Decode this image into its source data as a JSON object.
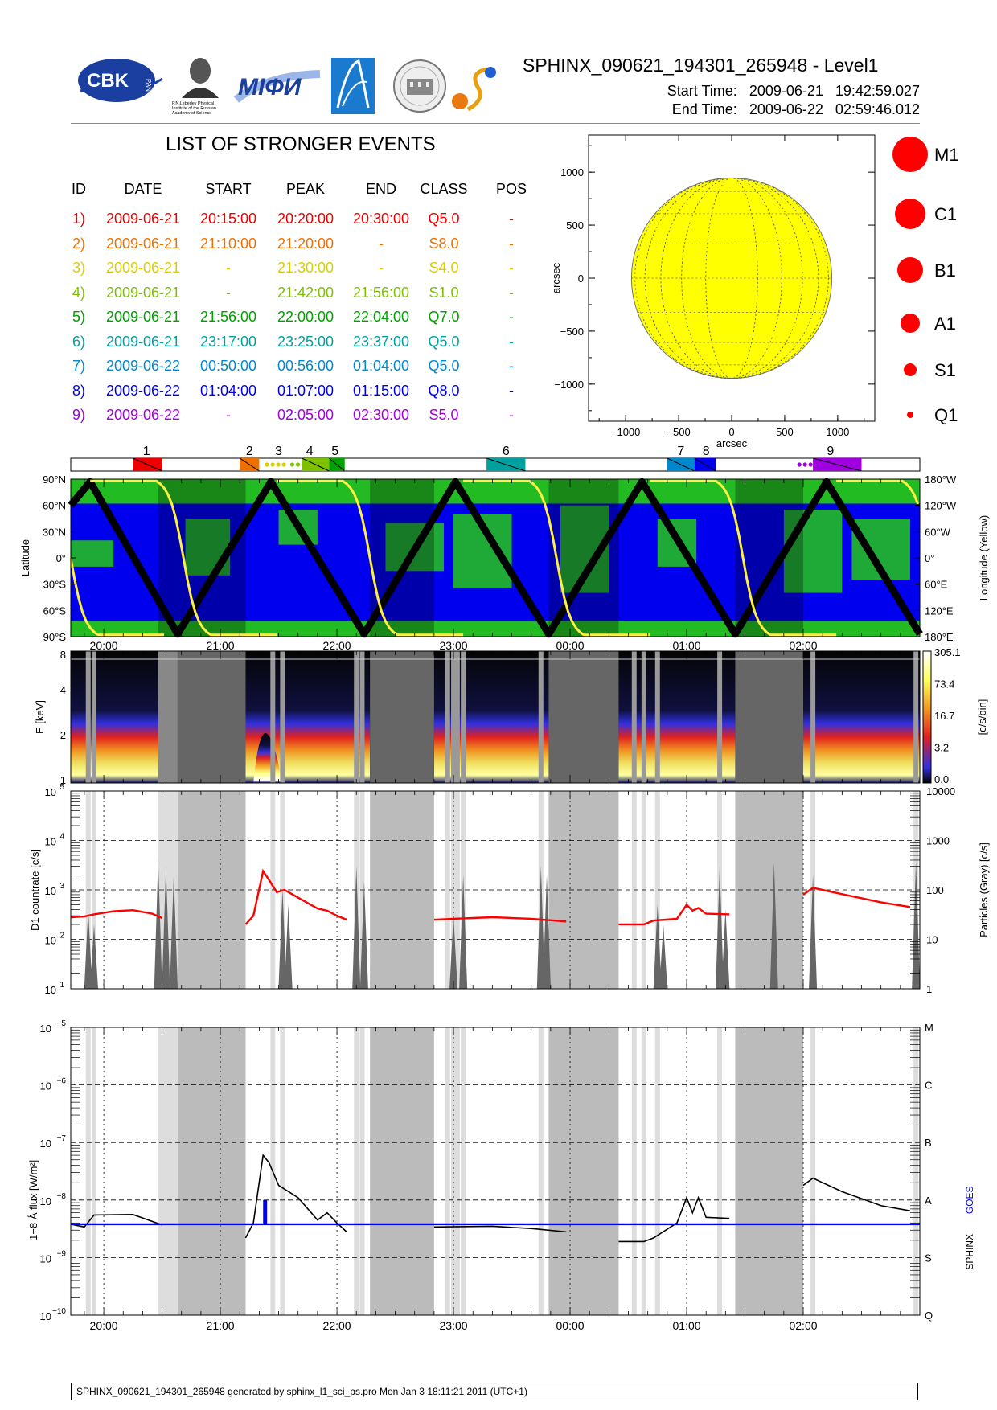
{
  "header": {
    "title": "SPHINX_090621_194301_265948 - Level1",
    "start_label": "Start Time:",
    "start_value": "2009-06-21   19:42:59.027",
    "end_label": "End Time:",
    "end_value": "2009-06-22   02:59:46.012",
    "logos": {
      "cbk": "CBK",
      "cbk_sub": "PAN",
      "lebedev": "P.N.Lebedev Physical Institute of the Russian Academy of Science",
      "mifi": "MIФИ"
    }
  },
  "events": {
    "title": "LIST OF STRONGER EVENTS",
    "columns": [
      "ID",
      "DATE",
      "START",
      "PEAK",
      "END",
      "CLASS",
      "POS"
    ],
    "rows": [
      {
        "id": "1)",
        "date": "2009-06-21",
        "start": "20:15:00",
        "peak": "20:20:00",
        "end": "20:30:00",
        "class": "Q5.0",
        "pos": "-",
        "color": "#ee0000"
      },
      {
        "id": "2)",
        "date": "2009-06-21",
        "start": "21:10:00",
        "peak": "21:20:00",
        "end": "-",
        "class": "S8.0",
        "pos": "-",
        "color": "#ef7000"
      },
      {
        "id": "3)",
        "date": "2009-06-21",
        "start": "-",
        "peak": "21:30:00",
        "end": "-",
        "class": "S4.0",
        "pos": "-",
        "color": "#d6cf00"
      },
      {
        "id": "4)",
        "date": "2009-06-21",
        "start": "-",
        "peak": "21:42:00",
        "end": "21:56:00",
        "class": "S1.0",
        "pos": "-",
        "color": "#7cc000"
      },
      {
        "id": "5)",
        "date": "2009-06-21",
        "start": "21:56:00",
        "peak": "22:00:00",
        "end": "22:04:00",
        "class": "Q7.0",
        "pos": "-",
        "color": "#00a000"
      },
      {
        "id": "6)",
        "date": "2009-06-21",
        "start": "23:17:00",
        "peak": "23:25:00",
        "end": "23:37:00",
        "class": "Q5.0",
        "pos": "-",
        "color": "#00a0a0"
      },
      {
        "id": "7)",
        "date": "2009-06-22",
        "start": "00:50:00",
        "peak": "00:56:00",
        "end": "01:04:00",
        "class": "Q5.0",
        "pos": "-",
        "color": "#0088cc"
      },
      {
        "id": "8)",
        "date": "2009-06-22",
        "start": "01:04:00",
        "peak": "01:07:00",
        "end": "01:15:00",
        "class": "Q8.0",
        "pos": "-",
        "color": "#0000ee"
      },
      {
        "id": "9)",
        "date": "2009-06-22",
        "start": "-",
        "peak": "02:05:00",
        "end": "02:30:00",
        "class": "S5.0",
        "pos": "-",
        "color": "#a000e0"
      }
    ]
  },
  "sun": {
    "xlabel": "arcsec",
    "ylabel": "arcsec",
    "ticks": [
      "-1000",
      "-500",
      "0",
      "500",
      "1000"
    ],
    "ytick_labels": [
      "1000",
      "500",
      "0",
      "−500",
      "−1000"
    ],
    "xtick_labels": [
      "−1000",
      "−500",
      "0",
      "500",
      "1000"
    ],
    "disk_color": "#ffff00"
  },
  "legend_classes": {
    "labels": [
      "M1",
      "C1",
      "B1",
      "A1",
      "S1",
      "Q1"
    ],
    "color": "#ff0000"
  },
  "timeline": {
    "event_ids": [
      "1",
      "2",
      "3",
      "4",
      "5",
      "6",
      "7",
      "8",
      "9"
    ]
  },
  "time_axis": {
    "labels": [
      "20:00",
      "21:00",
      "22:00",
      "23:00",
      "00:00",
      "01:00",
      "02:00"
    ]
  },
  "orbit": {
    "ylabel": "Latitude",
    "ylabel_right": "Longitude (Yellow)",
    "left_ticks": [
      "90°N",
      "60°N",
      "30°N",
      "0°",
      "30°S",
      "60°S",
      "90°S"
    ],
    "right_ticks": [
      "180°W",
      "120°W",
      "60°W",
      "0°",
      "60°E",
      "120°E",
      "180°E"
    ]
  },
  "spectrogram": {
    "ylabel": "E [keV]",
    "yticks": [
      "8",
      "4",
      "2",
      "1"
    ],
    "colorbar_ticks": [
      "305.1",
      "73.4",
      "16.7",
      "3.2",
      "0.0"
    ],
    "colorbar_label": "[c/s/bin]"
  },
  "countrate": {
    "ylabel": "D1 countrate [c/s]",
    "ylabel_right": "Particles (Gray) [c/s]",
    "left_ticks": [
      "10",
      "10",
      "10",
      "10",
      "10"
    ],
    "left_exp": [
      "5",
      "4",
      "3",
      "2",
      "1"
    ],
    "right_ticks": [
      "10000",
      "1000",
      "100",
      "10",
      "1"
    ]
  },
  "flux": {
    "ylabel": "1−8 Å flux [W/m²]",
    "left_ticks": [
      "10",
      "10",
      "10",
      "10",
      "10",
      "10"
    ],
    "left_exp": [
      "−5",
      "−6",
      "−7",
      "−8",
      "−9",
      "−10"
    ],
    "right_ticks": [
      "M",
      "C",
      "B",
      "A",
      "S",
      "Q"
    ],
    "legend_sphinx": "SPHINX",
    "legend_goes": "GOES",
    "goes_color": "#0000ff"
  },
  "footer": {
    "text": "SPHINX_090621_194301_265948 generated by sphinx_l1_sci_ps.pro Mon Jan  3 18:11:21 2011 (UTC+1)"
  },
  "chart_data": [
    {
      "type": "table",
      "title": "LIST OF STRONGER EVENTS",
      "columns": [
        "ID",
        "DATE",
        "START",
        "PEAK",
        "END",
        "CLASS",
        "POS"
      ]
    },
    {
      "type": "scatter",
      "xlabel": "arcsec",
      "ylabel": "arcsec",
      "xlim": [
        -1350,
        1350
      ],
      "ylim": [
        -1350,
        1350
      ],
      "disk_radius_arcsec": 945,
      "grid": true
    },
    {
      "type": "line",
      "ylabel": "Latitude",
      "ylim_deg": [
        -90,
        90
      ],
      "x_range": [
        "19:43",
        "03:00"
      ],
      "latitude_turning_points": [
        {
          "time": "19:43",
          "lat": 60
        },
        {
          "time": "19:53",
          "lat": 87
        },
        {
          "time": "20:38",
          "lat": -87
        },
        {
          "time": "21:26",
          "lat": 87
        },
        {
          "time": "22:14",
          "lat": -87
        },
        {
          "time": "23:01",
          "lat": 87
        },
        {
          "time": "23:49",
          "lat": -87
        },
        {
          "time": "00:37",
          "lat": 87
        },
        {
          "time": "01:25",
          "lat": -87
        },
        {
          "time": "02:12",
          "lat": 87
        },
        {
          "time": "03:00",
          "lat": -87
        }
      ]
    },
    {
      "type": "heatmap",
      "ylabel": "E [keV]",
      "ylim": [
        1,
        8
      ],
      "colorbar": [
        0.0,
        3.2,
        16.7,
        73.4,
        305.1
      ]
    },
    {
      "type": "line",
      "ylabel": "D1 countrate [c/s]",
      "log": true,
      "ylim": [
        10,
        100000
      ],
      "series": [
        {
          "values_note": "D1 countrate (red)",
          "points": [
            [
              "19:43",
              280
            ],
            [
              "19:50",
              290
            ],
            [
              "19:55",
              320
            ],
            [
              "20:05",
              370
            ],
            [
              "20:15",
              390
            ],
            [
              "20:25",
              330
            ],
            [
              "20:30",
              270
            ],
            [
              "21:13",
              200
            ],
            [
              "21:17",
              300
            ],
            [
              "21:22",
              2400
            ],
            [
              "21:25",
              1600
            ],
            [
              "21:29",
              900
            ],
            [
              "21:33",
              1000
            ],
            [
              "21:40",
              700
            ],
            [
              "21:50",
              420
            ],
            [
              "21:55",
              380
            ],
            [
              "22:00",
              300
            ],
            [
              "22:05",
              250
            ],
            [
              "22:50",
              250
            ],
            [
              "23:00",
              260
            ],
            [
              "23:20",
              280
            ],
            [
              "23:40",
              260
            ],
            [
              "23:58",
              230
            ],
            [
              "00:25",
              200
            ],
            [
              "00:38",
              200
            ],
            [
              "00:43",
              240
            ],
            [
              "00:55",
              260
            ],
            [
              "01:00",
              500
            ],
            [
              "01:03",
              380
            ],
            [
              "01:06",
              430
            ],
            [
              "01:10",
              330
            ],
            [
              "01:22",
              320
            ],
            [
              "02:00",
              800
            ],
            [
              "02:05",
              1100
            ],
            [
              "02:20",
              820
            ],
            [
              "02:40",
              560
            ],
            [
              "02:55",
              450
            ]
          ]
        }
      ]
    },
    {
      "type": "line",
      "ylabel": "1−8 Å flux [W/m²]",
      "log": true,
      "ylim": [
        1e-10,
        1e-05
      ],
      "series": [
        {
          "points": [
            [
              "19:43",
              3.8e-09
            ],
            [
              "19:50",
              3.4e-09
            ],
            [
              "19:55",
              5.5e-09
            ],
            [
              "20:15",
              5.6e-09
            ],
            [
              "20:30",
              3.7e-09
            ],
            [
              "21:13",
              2.2e-09
            ],
            [
              "21:17",
              4e-09
            ],
            [
              "21:22",
              6e-08
            ],
            [
              "21:25",
              4.5e-08
            ],
            [
              "21:30",
              1.8e-08
            ],
            [
              "21:40",
              1.1e-08
            ],
            [
              "21:50",
              4.5e-09
            ],
            [
              "21:55",
              6e-09
            ],
            [
              "22:00",
              4e-09
            ],
            [
              "22:05",
              2.8e-09
            ],
            [
              "22:50",
              3.4e-09
            ],
            [
              "23:20",
              3.5e-09
            ],
            [
              "23:40",
              3.2e-09
            ],
            [
              "23:58",
              2.8e-09
            ],
            [
              "00:25",
              1.9e-09
            ],
            [
              "00:38",
              1.9e-09
            ],
            [
              "00:43",
              2.2e-09
            ],
            [
              "00:55",
              4e-09
            ],
            [
              "01:00",
              1.1e-08
            ],
            [
              "01:03",
              6e-09
            ],
            [
              "01:06",
              1.1e-08
            ],
            [
              "01:10",
              5e-09
            ],
            [
              "01:22",
              4.8e-09
            ],
            [
              "02:00",
              1.8e-08
            ],
            [
              "02:05",
              2.4e-08
            ],
            [
              "02:20",
              1.4e-08
            ],
            [
              "02:40",
              8e-09
            ],
            [
              "02:55",
              6.5e-09
            ]
          ]
        },
        {
          "name": "GOES",
          "points": [
            [
              "19:43",
              3.8e-09
            ],
            [
              "03:00",
              3.8e-09
            ]
          ]
        }
      ]
    }
  ]
}
